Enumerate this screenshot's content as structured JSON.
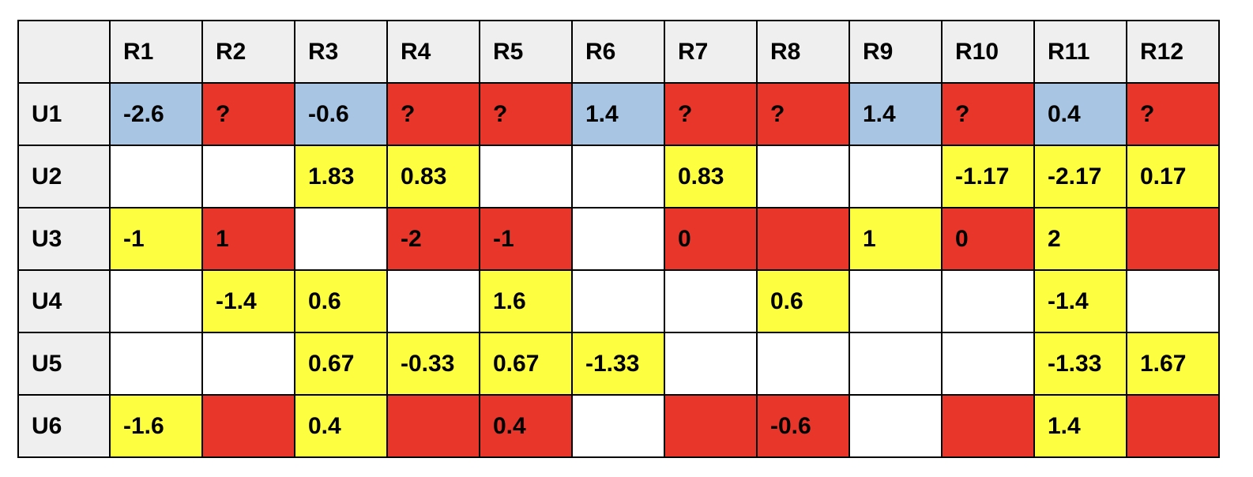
{
  "colors": {
    "header_bg": "#efefef",
    "blue": "#a8c5e4",
    "red": "#e8372a",
    "yellow": "#fdfe3f",
    "white": "#ffffff"
  },
  "table": {
    "corner": "",
    "columns": [
      "R1",
      "R2",
      "R3",
      "R4",
      "R5",
      "R6",
      "R7",
      "R8",
      "R9",
      "R10",
      "R11",
      "R12"
    ],
    "rows": [
      {
        "label": "U1",
        "cells": [
          {
            "v": "-2.6",
            "c": "blue"
          },
          {
            "v": "?",
            "c": "red"
          },
          {
            "v": "-0.6",
            "c": "blue"
          },
          {
            "v": "?",
            "c": "red"
          },
          {
            "v": "?",
            "c": "red"
          },
          {
            "v": "1.4",
            "c": "blue"
          },
          {
            "v": "?",
            "c": "red"
          },
          {
            "v": "?",
            "c": "red"
          },
          {
            "v": "1.4",
            "c": "blue"
          },
          {
            "v": "?",
            "c": "red"
          },
          {
            "v": "0.4",
            "c": "blue"
          },
          {
            "v": "?",
            "c": "red"
          }
        ]
      },
      {
        "label": "U2",
        "cells": [
          {
            "v": "",
            "c": "white"
          },
          {
            "v": "",
            "c": "white"
          },
          {
            "v": "1.83",
            "c": "yellow"
          },
          {
            "v": "0.83",
            "c": "yellow"
          },
          {
            "v": "",
            "c": "white"
          },
          {
            "v": "",
            "c": "white"
          },
          {
            "v": "0.83",
            "c": "yellow"
          },
          {
            "v": "",
            "c": "white"
          },
          {
            "v": "",
            "c": "white"
          },
          {
            "v": "-1.17",
            "c": "yellow"
          },
          {
            "v": "-2.17",
            "c": "yellow"
          },
          {
            "v": "0.17",
            "c": "yellow"
          }
        ]
      },
      {
        "label": "U3",
        "cells": [
          {
            "v": "-1",
            "c": "yellow"
          },
          {
            "v": "1",
            "c": "red"
          },
          {
            "v": "",
            "c": "white"
          },
          {
            "v": "-2",
            "c": "red"
          },
          {
            "v": "-1",
            "c": "red"
          },
          {
            "v": "",
            "c": "white"
          },
          {
            "v": "0",
            "c": "red"
          },
          {
            "v": "",
            "c": "red"
          },
          {
            "v": "1",
            "c": "yellow"
          },
          {
            "v": "0",
            "c": "red"
          },
          {
            "v": "2",
            "c": "yellow"
          },
          {
            "v": "",
            "c": "red"
          }
        ]
      },
      {
        "label": "U4",
        "cells": [
          {
            "v": "",
            "c": "white"
          },
          {
            "v": "-1.4",
            "c": "yellow"
          },
          {
            "v": "0.6",
            "c": "yellow"
          },
          {
            "v": "",
            "c": "white"
          },
          {
            "v": "1.6",
            "c": "yellow"
          },
          {
            "v": "",
            "c": "white"
          },
          {
            "v": "",
            "c": "white"
          },
          {
            "v": "0.6",
            "c": "yellow"
          },
          {
            "v": "",
            "c": "white"
          },
          {
            "v": "",
            "c": "white"
          },
          {
            "v": "-1.4",
            "c": "yellow"
          },
          {
            "v": "",
            "c": "white"
          }
        ]
      },
      {
        "label": "U5",
        "cells": [
          {
            "v": "",
            "c": "white"
          },
          {
            "v": "",
            "c": "white"
          },
          {
            "v": "0.67",
            "c": "yellow"
          },
          {
            "v": "-0.33",
            "c": "yellow"
          },
          {
            "v": "0.67",
            "c": "yellow"
          },
          {
            "v": "-1.33",
            "c": "yellow"
          },
          {
            "v": "",
            "c": "white"
          },
          {
            "v": "",
            "c": "white"
          },
          {
            "v": "",
            "c": "white"
          },
          {
            "v": "",
            "c": "white"
          },
          {
            "v": "-1.33",
            "c": "yellow"
          },
          {
            "v": "1.67",
            "c": "yellow"
          }
        ]
      },
      {
        "label": "U6",
        "cells": [
          {
            "v": "-1.6",
            "c": "yellow"
          },
          {
            "v": "",
            "c": "red"
          },
          {
            "v": "0.4",
            "c": "yellow"
          },
          {
            "v": "",
            "c": "red"
          },
          {
            "v": "0.4",
            "c": "red"
          },
          {
            "v": "",
            "c": "white"
          },
          {
            "v": "",
            "c": "red"
          },
          {
            "v": "-0.6",
            "c": "red"
          },
          {
            "v": "",
            "c": "white"
          },
          {
            "v": "",
            "c": "red"
          },
          {
            "v": "1.4",
            "c": "yellow"
          },
          {
            "v": "",
            "c": "red"
          }
        ]
      }
    ]
  }
}
